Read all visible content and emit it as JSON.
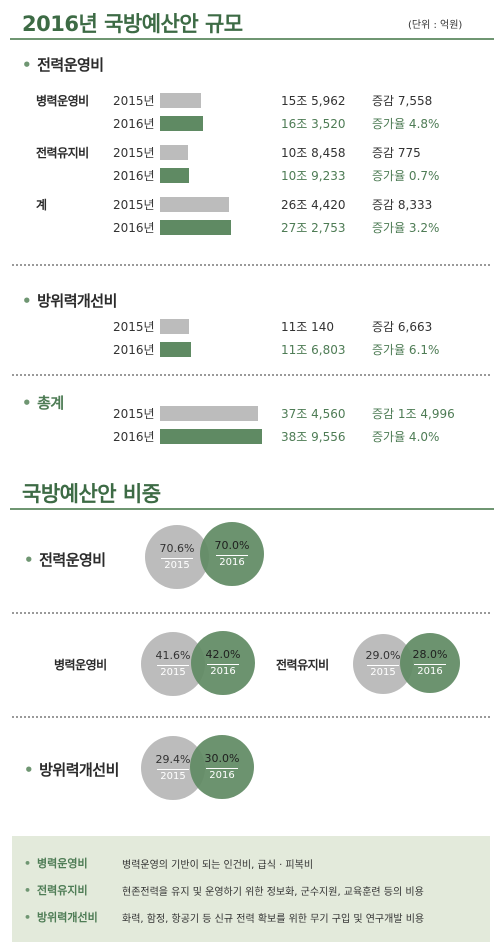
{
  "header": {
    "title": "2016년 국방예산안 규모",
    "unit": "(단위 : 억원)"
  },
  "chart_data": [
    {
      "type": "bar",
      "title": "2016년 국방예산안 규모",
      "unit": "억원",
      "groups": [
        {
          "section": "전력운영비",
          "label": "병력운영비",
          "rows": [
            {
              "year": "2015년",
              "value": 155962,
              "value_text": "15조 5,962",
              "change_text": "증감 7,558"
            },
            {
              "year": "2016년",
              "value": 163520,
              "value_text": "16조 3,520",
              "change_text": "증가율 4.8%"
            }
          ]
        },
        {
          "section": "전력운영비",
          "label": "전력유지비",
          "rows": [
            {
              "year": "2015년",
              "value": 108458,
              "value_text": "10조 8,458",
              "change_text": "증감 775"
            },
            {
              "year": "2016년",
              "value": 109233,
              "value_text": "10조 9,233",
              "change_text": "증가율 0.7%"
            }
          ]
        },
        {
          "section": "전력운영비",
          "label": "계",
          "rows": [
            {
              "year": "2015년",
              "value": 264420,
              "value_text": "26조 4,420",
              "change_text": "증감 8,333"
            },
            {
              "year": "2016년",
              "value": 272753,
              "value_text": "27조 2,753",
              "change_text": "증가율 3.2%"
            }
          ]
        },
        {
          "section": "방위력개선비",
          "label": "",
          "rows": [
            {
              "year": "2015년",
              "value": 110140,
              "value_text": "11조 140",
              "change_text": "증감 6,663"
            },
            {
              "year": "2016년",
              "value": 116803,
              "value_text": "11조 6,803",
              "change_text": "증가율 6.1%"
            }
          ]
        },
        {
          "section": "총계",
          "label": "",
          "rows": [
            {
              "year": "2015년",
              "value": 374560,
              "value_text": "37조 4,560",
              "change_text": "증감 1조 4,996"
            },
            {
              "year": "2016년",
              "value": 389556,
              "value_text": "38조 9,556",
              "change_text": "증가율 4.0%"
            }
          ]
        }
      ]
    },
    {
      "type": "venn",
      "title": "국방예산안 비중",
      "series": [
        {
          "name": "전력운영비",
          "values": [
            {
              "year": "2015",
              "pct": 70.6,
              "text": "70.6%"
            },
            {
              "year": "2016",
              "pct": 70.0,
              "text": "70.0%"
            }
          ]
        },
        {
          "name": "병력운영비",
          "values": [
            {
              "year": "2015",
              "pct": 41.6,
              "text": "41.6%"
            },
            {
              "year": "2016",
              "pct": 42.0,
              "text": "42.0%"
            }
          ]
        },
        {
          "name": "전력유지비",
          "values": [
            {
              "year": "2015",
              "pct": 29.0,
              "text": "29.0%"
            },
            {
              "year": "2016",
              "pct": 28.0,
              "text": "28.0%"
            }
          ]
        },
        {
          "name": "방위력개선비",
          "values": [
            {
              "year": "2015",
              "pct": 29.4,
              "text": "29.4%"
            },
            {
              "year": "2016",
              "pct": 30.0,
              "text": "30.0%"
            }
          ]
        }
      ]
    }
  ],
  "sections": {
    "s1": "전력운영비",
    "s2": "방위력개선비",
    "s3": "총계",
    "ratio_title": "국방예산안 비중"
  },
  "notes": [
    {
      "key": "병력운영비",
      "text": "병력운영의 기반이 되는 인건비, 급식 · 피복비"
    },
    {
      "key": "전력유지비",
      "text": "현존전력을 유지 및 운영하기 위한 정보화, 군수지원, 교육훈련 등의 비용"
    },
    {
      "key": "방위력개선비",
      "text": "화력, 함정, 항공기 등 신규 전력 확보를 위한 무기 구입 및 연구개발 비용"
    }
  ],
  "colors": {
    "accent": "#4e7c55",
    "bar2015": "#bcbcbc",
    "bar2016": "#5f8a63"
  }
}
